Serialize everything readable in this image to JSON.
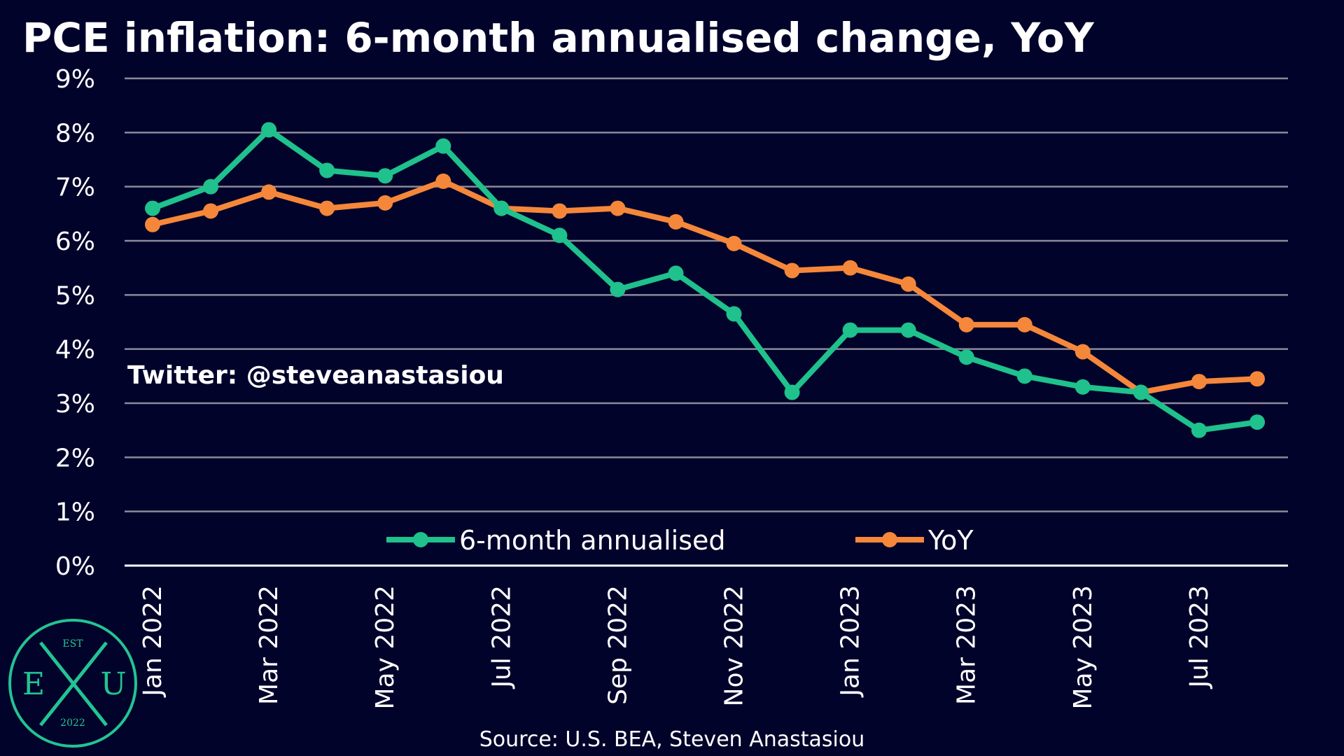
{
  "colors": {
    "background": "#02032b",
    "grid": "#8a8a9a",
    "axis": "#ffffff",
    "series_6m": "#1fc18c",
    "series_yoy": "#f5873b",
    "logo": "#22c493"
  },
  "watermark": "Twitter: @steveanastasiou",
  "source": "Source: U.S. BEA, Steven Anastasiou",
  "logo": {
    "top": "EST",
    "left": "E",
    "right": "U",
    "bottom": "2022"
  },
  "chart_data": {
    "type": "line",
    "title": "PCE inflation: 6-month annualised change, YoY",
    "xlabel": "",
    "ylabel": "",
    "ylim": [
      0,
      9
    ],
    "yticks": [
      0,
      1,
      2,
      3,
      4,
      5,
      6,
      7,
      8,
      9
    ],
    "ytick_labels": [
      "0%",
      "1%",
      "2%",
      "3%",
      "4%",
      "5%",
      "6%",
      "7%",
      "8%",
      "9%"
    ],
    "grid": true,
    "legend": "bottom-center",
    "x": [
      "Jan 2022",
      "Feb 2022",
      "Mar 2022",
      "Apr 2022",
      "May 2022",
      "Jun 2022",
      "Jul 2022",
      "Aug 2022",
      "Sep 2022",
      "Oct 2022",
      "Nov 2022",
      "Dec 2022",
      "Jan 2023",
      "Feb 2023",
      "Mar 2023",
      "Apr 2023",
      "May 2023",
      "Jun 2023",
      "Jul 2023",
      "Aug 2023"
    ],
    "xtick_labels": [
      "Jan 2022",
      "Mar 2022",
      "May 2022",
      "Jul 2022",
      "Sep 2022",
      "Nov 2022",
      "Jan 2023",
      "Mar 2023",
      "May 2023",
      "Jul 2023"
    ],
    "series": [
      {
        "name": "6-month annualised",
        "color": "#1fc18c",
        "values": [
          6.6,
          7.0,
          8.05,
          7.3,
          7.2,
          7.75,
          6.6,
          6.1,
          5.1,
          5.4,
          4.65,
          3.2,
          4.35,
          4.35,
          3.85,
          3.5,
          3.3,
          3.2,
          2.5,
          2.65
        ]
      },
      {
        "name": "YoY",
        "color": "#f5873b",
        "values": [
          6.3,
          6.55,
          6.9,
          6.6,
          6.7,
          7.1,
          6.6,
          6.55,
          6.6,
          6.35,
          5.95,
          5.45,
          5.5,
          5.2,
          4.45,
          4.45,
          3.95,
          3.2,
          3.4,
          3.45
        ]
      }
    ]
  }
}
